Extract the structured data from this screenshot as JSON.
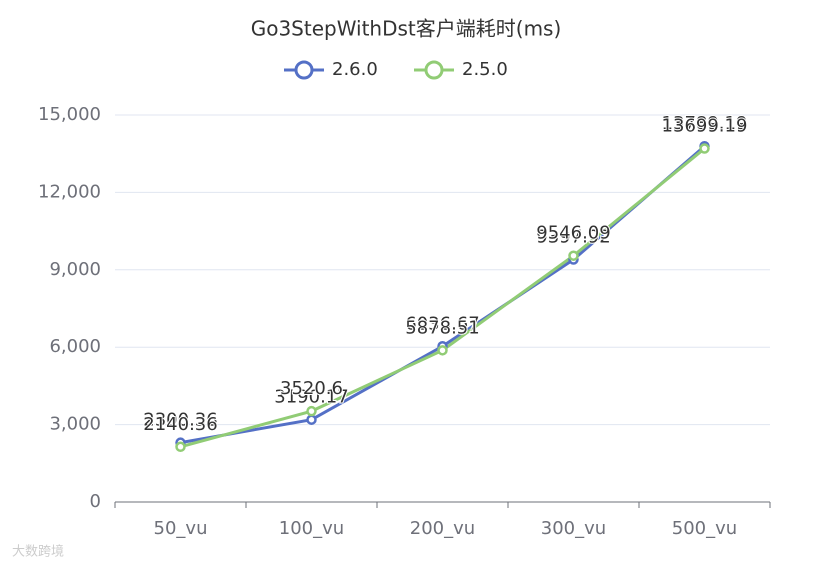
{
  "chart_data": {
    "type": "line",
    "title": "Go3StepWithDst客户端耗时(ms)",
    "categories": [
      "50_vu",
      "100_vu",
      "200_vu",
      "300_vu",
      "500_vu"
    ],
    "series": [
      {
        "name": "2.6.0",
        "color": "#5470c6",
        "values": [
          2300.36,
          3190.17,
          6036.67,
          9397.92,
          13789.19
        ]
      },
      {
        "name": "2.5.0",
        "color": "#91cc75",
        "values": [
          2140.36,
          3520.6,
          5878.51,
          9546.09,
          13699.19
        ]
      }
    ],
    "ylim": [
      0,
      15000
    ],
    "yticks": [
      0,
      {
        "value": 3000,
        "label": "3,000"
      },
      {
        "value": 6000,
        "label": "6,000"
      },
      {
        "value": 9000,
        "label": "9,000"
      },
      {
        "value": 12000,
        "label": "12,000"
      },
      {
        "value": 15000,
        "label": "15,000"
      }
    ],
    "grid": true,
    "legend": "top",
    "watermark": "大数跨境"
  }
}
